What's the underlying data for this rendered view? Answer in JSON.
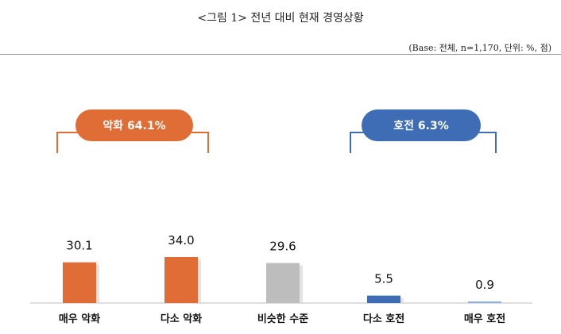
{
  "header": {
    "title": "<그림 1> 전년 대비 현재 경영상황",
    "base_note": "(Base: 전체, n=1,170, 단위: %, 점)"
  },
  "chart_data": {
    "type": "bar",
    "categories": [
      "매우 악화",
      "다소 악화",
      "비슷한 수준",
      "다소 호전",
      "매우 호전"
    ],
    "values": [
      30.1,
      34.0,
      29.6,
      5.5,
      0.9
    ],
    "value_labels": [
      "30.1",
      "34.0",
      "29.6",
      "5.5",
      "0.9"
    ],
    "bar_colors": [
      "#e06c36",
      "#e06c36",
      "#bdbdbd",
      "#3f6db5",
      "#8fb0d8"
    ],
    "ylim": [
      0,
      34
    ],
    "grid": false,
    "groups": [
      {
        "label": "악화 64.1%",
        "covers": [
          0,
          1
        ],
        "color": "#e06c36"
      },
      {
        "label": "호전 6.3%",
        "covers": [
          3,
          4
        ],
        "color": "#3f6db5"
      }
    ]
  }
}
